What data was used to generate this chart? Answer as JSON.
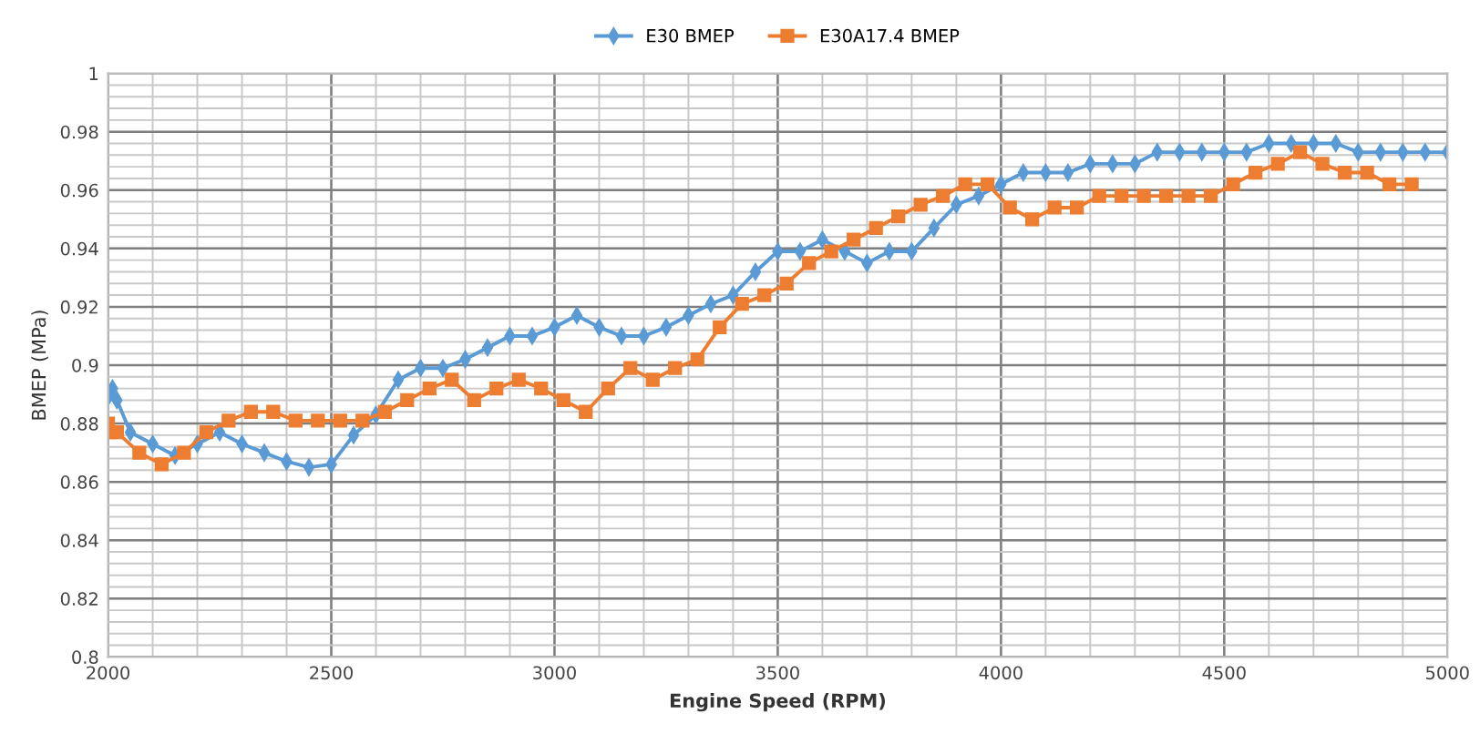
{
  "chart_data": {
    "type": "line",
    "xlabel": "Engine Speed (RPM)",
    "ylabel": "BMEP (MPa)",
    "xlim": [
      2000,
      5000
    ],
    "xticks": [
      2000,
      2500,
      3000,
      3500,
      4000,
      4500,
      5000
    ],
    "ylim": [
      0.8,
      1
    ],
    "yticks": [
      0.8,
      0.82,
      0.84,
      0.86,
      0.88,
      0.9,
      0.92,
      0.94,
      0.96,
      0.98,
      1
    ],
    "grid": true,
    "legend": "top",
    "series": [
      {
        "name": "E30 BMEP",
        "color": "#5b9bd5",
        "marker": "diamond",
        "x": [
          2000,
          2010,
          2020,
          2050,
          2100,
          2150,
          2200,
          2250,
          2300,
          2350,
          2400,
          2450,
          2500,
          2550,
          2600,
          2650,
          2700,
          2750,
          2800,
          2850,
          2900,
          2950,
          3000,
          3050,
          3100,
          3150,
          3200,
          3250,
          3300,
          3350,
          3400,
          3450,
          3500,
          3550,
          3600,
          3650,
          3700,
          3750,
          3800,
          3850,
          3900,
          3950,
          4000,
          4050,
          4100,
          4150,
          4200,
          4250,
          4300,
          4350,
          4400,
          4450,
          4500,
          4550,
          4600,
          4650,
          4700,
          4750,
          4800,
          4850,
          4900,
          4950,
          5000
        ],
        "values": [
          0.889,
          0.892,
          0.888,
          0.877,
          0.873,
          0.869,
          0.873,
          0.877,
          0.873,
          0.87,
          0.867,
          0.865,
          0.866,
          0.876,
          0.883,
          0.895,
          0.899,
          0.899,
          0.902,
          0.906,
          0.91,
          0.91,
          0.913,
          0.917,
          0.913,
          0.91,
          0.91,
          0.913,
          0.917,
          0.921,
          0.924,
          0.932,
          0.939,
          0.939,
          0.943,
          0.939,
          0.935,
          0.939,
          0.939,
          0.947,
          0.955,
          0.958,
          0.962,
          0.966,
          0.966,
          0.966,
          0.969,
          0.969,
          0.969,
          0.973,
          0.973,
          0.973,
          0.973,
          0.973,
          0.976,
          0.976,
          0.976,
          0.976,
          0.973,
          0.973,
          0.973,
          0.973,
          0.973
        ]
      },
      {
        "name": "E30A17.4 BMEP",
        "color": "#ed7d31",
        "marker": "square",
        "x": [
          2000,
          2005,
          2020,
          2070,
          2120,
          2170,
          2220,
          2270,
          2320,
          2370,
          2420,
          2470,
          2520,
          2570,
          2620,
          2670,
          2720,
          2770,
          2820,
          2870,
          2920,
          2970,
          3020,
          3070,
          3120,
          3170,
          3220,
          3270,
          3320,
          3370,
          3420,
          3470,
          3520,
          3570,
          3620,
          3670,
          3720,
          3770,
          3820,
          3870,
          3920,
          3970,
          4020,
          4070,
          4120,
          4170,
          4220,
          4270,
          4320,
          4370,
          4420,
          4470,
          4520,
          4570,
          4620,
          4670,
          4720,
          4770,
          4820,
          4870,
          4920
        ],
        "values": [
          0.88,
          0.877,
          0.877,
          0.87,
          0.866,
          0.87,
          0.877,
          0.881,
          0.884,
          0.884,
          0.881,
          0.881,
          0.881,
          0.881,
          0.884,
          0.888,
          0.892,
          0.895,
          0.888,
          0.892,
          0.895,
          0.892,
          0.888,
          0.884,
          0.892,
          0.899,
          0.895,
          0.899,
          0.902,
          0.913,
          0.921,
          0.924,
          0.928,
          0.935,
          0.939,
          0.943,
          0.947,
          0.951,
          0.955,
          0.958,
          0.962,
          0.962,
          0.954,
          0.95,
          0.954,
          0.954,
          0.958,
          0.958,
          0.958,
          0.958,
          0.958,
          0.958,
          0.962,
          0.966,
          0.969,
          0.973,
          0.969,
          0.966,
          0.966,
          0.962,
          0.962
        ]
      }
    ]
  }
}
